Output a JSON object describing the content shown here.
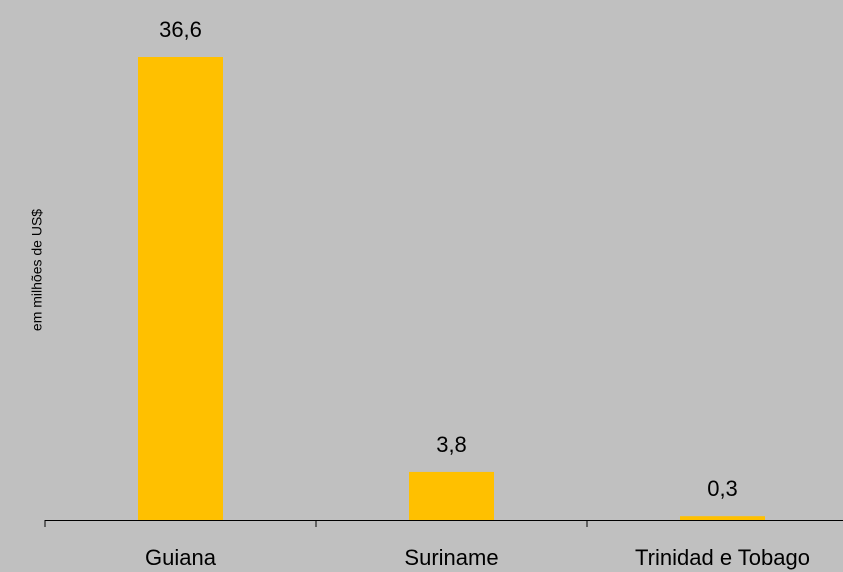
{
  "chart_data": {
    "type": "bar",
    "y_axis_label": "em milhões de US$",
    "categories": [
      "Guiana",
      "Suriname",
      "Trinidad e Tobago"
    ],
    "values": [
      36.6,
      3.8,
      0.3
    ],
    "value_labels": [
      "36,6",
      "3,8",
      "0,3"
    ],
    "color": "#ffc000",
    "grid": false
  }
}
